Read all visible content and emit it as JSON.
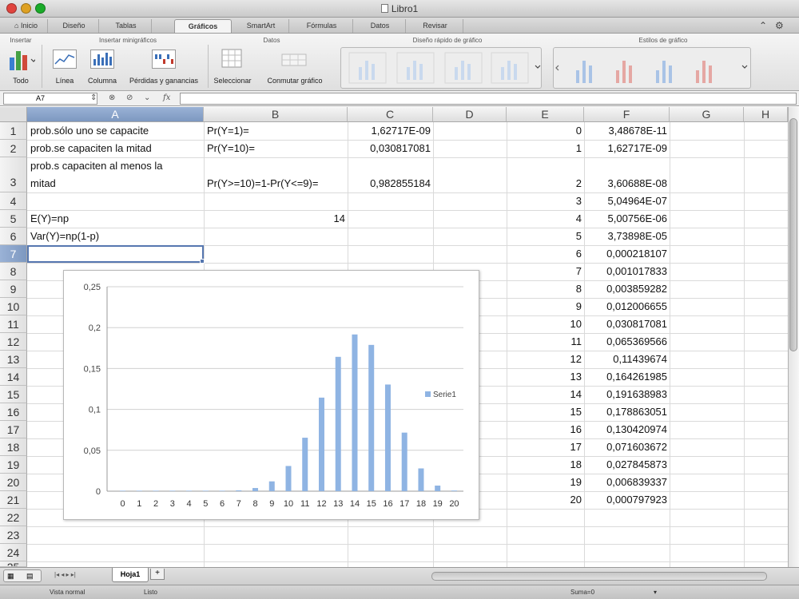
{
  "window": {
    "title": "Libro1"
  },
  "ribbon_tabs": [
    {
      "label": "Inicio"
    },
    {
      "label": "Diseño"
    },
    {
      "label": "Tablas"
    },
    {
      "label": "Gráficos",
      "active": true
    },
    {
      "label": "SmartArt"
    },
    {
      "label": "Fórmulas"
    },
    {
      "label": "Datos"
    },
    {
      "label": "Revisar"
    }
  ],
  "ribbon": {
    "groups": {
      "insertar": "Insertar",
      "minigraficos": "Insertar minigráficos",
      "datos": "Datos",
      "diseno_rapido": "Diseño rápido de gráfico",
      "estilos": "Estilos de gráfico"
    },
    "buttons": {
      "todo": "Todo",
      "linea": "Línea",
      "columna": "Columna",
      "perdidas": "Pérdidas y ganancias",
      "seleccionar": "Seleccionar",
      "conmutar": "Conmutar gráfico"
    }
  },
  "formula_bar": {
    "name_box": "A7",
    "fx": "fx",
    "value": ""
  },
  "columns": [
    "A",
    "B",
    "C",
    "D",
    "E",
    "F",
    "G",
    "H"
  ],
  "active_column": "A",
  "active_row": "7",
  "rows": [
    "1",
    "2",
    "3",
    "4",
    "5",
    "6",
    "7",
    "8",
    "9",
    "10",
    "11",
    "12",
    "13",
    "14",
    "15",
    "16",
    "17",
    "18",
    "19",
    "20",
    "21",
    "22",
    "23",
    "24",
    "25"
  ],
  "cells": {
    "A1": "prob.sólo uno se capacite",
    "B1": "Pr(Y=1)=",
    "C1": "1,62717E-09",
    "A2": "prob.se capaciten la mitad",
    "B2": "Pr(Y=10)=",
    "C2": "0,030817081",
    "A3_line1": "prob.s capaciten al menos la",
    "A3_line2": "mitad",
    "B3": "Pr(Y>=10)=1-Pr(Y<=9)=",
    "C3": "0,982855184",
    "A5": "E(Y)=np",
    "B5": "14",
    "A6": "Var(Y)=np(1-p)"
  },
  "table_E": [
    "0",
    "1",
    "2",
    "3",
    "4",
    "5",
    "6",
    "7",
    "8",
    "9",
    "10",
    "11",
    "12",
    "13",
    "14",
    "15",
    "16",
    "17",
    "18",
    "19",
    "20"
  ],
  "table_F": [
    "3,48678E-11",
    "1,62717E-09",
    "3,60688E-08",
    "5,04964E-07",
    "5,00756E-06",
    "3,73898E-05",
    "0,000218107",
    "0,001017833",
    "0,003859282",
    "0,012006655",
    "0,030817081",
    "0,065369566",
    "0,11439674",
    "0,164261985",
    "0,191638983",
    "0,178863051",
    "0,130420974",
    "0,071603672",
    "0,027845873",
    "0,006839337",
    "0,000797923"
  ],
  "chart_data": {
    "type": "bar",
    "title": "",
    "xlabel": "",
    "ylabel": "",
    "categories": [
      "0",
      "1",
      "2",
      "3",
      "4",
      "5",
      "6",
      "7",
      "8",
      "9",
      "10",
      "11",
      "12",
      "13",
      "14",
      "15",
      "16",
      "17",
      "18",
      "19",
      "20"
    ],
    "series": [
      {
        "name": "Serie1",
        "values": [
          3.48678e-11,
          1.62717e-09,
          3.60688e-08,
          5.04964e-07,
          5.00756e-06,
          3.73898e-05,
          0.000218107,
          0.001017833,
          0.003859282,
          0.012006655,
          0.030817081,
          0.065369566,
          0.11439674,
          0.164261985,
          0.191638983,
          0.178863051,
          0.130420974,
          0.071603672,
          0.027845873,
          0.006839337,
          0.000797923
        ]
      }
    ],
    "yticks": [
      "0",
      "0,05",
      "0,1",
      "0,15",
      "0,2",
      "0,25"
    ],
    "ylim": [
      0,
      0.25
    ],
    "grid": true,
    "legend_position": "right",
    "bar_color": "#8fb4e3"
  },
  "sheet": {
    "tab": "Hoja1",
    "add": "+"
  },
  "status": {
    "view": "Vista normal",
    "state": "Listo",
    "sum": "Suma=0"
  }
}
